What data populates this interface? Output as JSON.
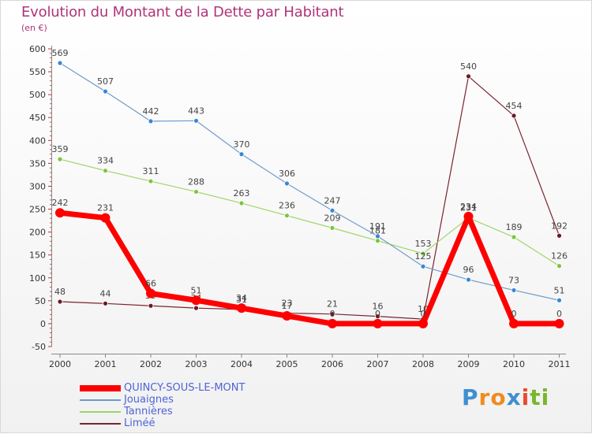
{
  "header": {
    "title": "Evolution du Montant de la Dette par Habitant",
    "subtitle": "(en €)"
  },
  "logo": {
    "text": "Proxiti",
    "colors": [
      "#3f8fd1",
      "#ef8b22",
      "#ef8b22",
      "#3f8fd1",
      "#e64d2e",
      "#79b62d",
      "#79b62d"
    ]
  },
  "chart_data": {
    "type": "line",
    "title": "Evolution du Montant de la Dette par Habitant",
    "subtitle": "(en €)",
    "xlabel": "",
    "ylabel": "",
    "categories": [
      "2000",
      "2001",
      "2002",
      "2003",
      "2004",
      "2005",
      "2006",
      "2007",
      "2008",
      "2009",
      "2010",
      "2011"
    ],
    "ylim": [
      -50,
      600
    ],
    "yticks": [
      -50,
      0,
      50,
      100,
      150,
      200,
      250,
      300,
      350,
      400,
      450,
      500,
      550,
      600
    ],
    "grid": false,
    "legend_position": "bottom-left",
    "series": [
      {
        "name": "Liméé",
        "values": [
          48,
          44,
          39,
          34,
          31,
          23,
          21,
          16,
          10,
          540,
          454,
          192
        ],
        "color": "#7a2430",
        "marker": "#6b1a22",
        "width": 1.2,
        "showLabels": true
      },
      {
        "name": "Tannières",
        "values": [
          359,
          334,
          311,
          288,
          263,
          236,
          209,
          181,
          153,
          231,
          189,
          126
        ],
        "color": "#9ed666",
        "marker": "#7cc63e",
        "width": 1.2,
        "showLabels": true
      },
      {
        "name": "Jouaignes",
        "values": [
          569,
          507,
          442,
          443,
          370,
          306,
          247,
          191,
          125,
          96,
          73,
          51
        ],
        "color": "#6e9ccc",
        "marker": "#3a86d4",
        "width": 1.2,
        "showLabels": true
      },
      {
        "name": "QUINCY-SOUS-LE-MONT",
        "values": [
          242,
          231,
          66,
          51,
          34,
          17,
          0,
          0,
          0,
          234,
          0,
          0
        ],
        "color": "#ff0000",
        "marker": "#ff0000",
        "width": 7,
        "showLabels": true
      }
    ]
  }
}
